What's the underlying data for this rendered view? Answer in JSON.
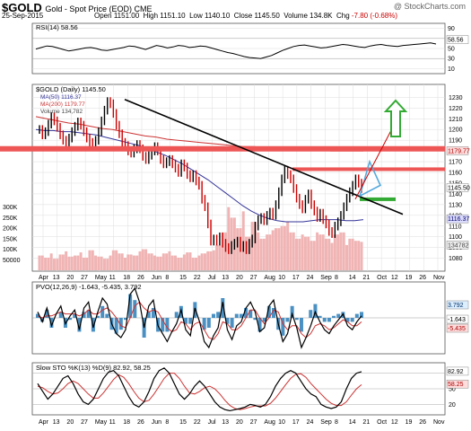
{
  "header": {
    "symbol": "$GOLD",
    "subtitle": "Gold - Spot Price (EOD) CME",
    "watermark": "@ StockCharts.com",
    "date": "25-Sep-2015",
    "open_label": "Open",
    "open": "1151.00",
    "high_label": "High",
    "high": "1151.10",
    "low_label": "Low",
    "low": "1140.10",
    "close_label": "Close",
    "close": "1145.50",
    "volume_label": "Volume",
    "volume": "134.8K",
    "chg_label": "Chg",
    "chg": "-7.80 (-0.68%)"
  },
  "colors": {
    "price_up": "#000000",
    "price_down": "#cc0000",
    "ma50": "#333399",
    "ma200": "#cc3333",
    "volume": "#f0b4b4",
    "hline": "#ee5555",
    "arrow_up": "#33aa33",
    "arrow_tri": "#55aadd",
    "panel_bg": "#ffffff",
    "grid": "#dddddd"
  },
  "chart_data": [
    {
      "type": "line",
      "panel": "rsi",
      "title": "RSI(14) 58.56",
      "ylim": [
        0,
        100
      ],
      "ticks": [
        "90",
        "70",
        "50",
        "30",
        "10"
      ],
      "last_label": "58.56",
      "series": [
        {
          "values": [
            49,
            52,
            55,
            54,
            51,
            48,
            45,
            47,
            49,
            51,
            52,
            50,
            47,
            46,
            48,
            50,
            52,
            55,
            54,
            51,
            48,
            52,
            56,
            54,
            51,
            53,
            56,
            55,
            52,
            53,
            55,
            54,
            51,
            48,
            45,
            42,
            40,
            37,
            34,
            32,
            31,
            30,
            33,
            36,
            41,
            46,
            50,
            54,
            56,
            57,
            55,
            53,
            51,
            52,
            54,
            56,
            58,
            57,
            55,
            53,
            52,
            55,
            57,
            58,
            56,
            55,
            54,
            56,
            57,
            58,
            59,
            60,
            61,
            59
          ]
        }
      ]
    },
    {
      "type": "line",
      "panel": "price",
      "title": "$GOLD (Daily) 1145.50",
      "ylim": [
        1068,
        1242
      ],
      "yticks": [
        "1230",
        "1220",
        "1210",
        "1200",
        "1190",
        "1180",
        "1170",
        "1160",
        "1150",
        "1140",
        "1130",
        "1120",
        "1110",
        "1100",
        "1090",
        "1080"
      ],
      "xlabels": [
        "Apr",
        "13",
        "20",
        "27",
        "May",
        "11",
        "18",
        "26",
        "Jun",
        "8",
        "15",
        "22",
        "Jul",
        "13",
        "20",
        "27",
        "Aug",
        "10",
        "17",
        "24",
        "Sep",
        "8",
        "14",
        "21",
        "Oct",
        "12",
        "19",
        "26",
        "Nov"
      ],
      "volume_ticks": [
        "300K",
        "250K",
        "200K",
        "150K",
        "100K",
        "50000"
      ],
      "legend": [
        "MA(50) 1116.37",
        "MA(200) 1179.77",
        "Volume 134,782"
      ],
      "value_labels": [
        "1179.77",
        "1145.50",
        "1116.37",
        "134782"
      ],
      "series": [
        {
          "name": "$GOLD",
          "values": [
            1200,
            1195,
            1198,
            1205,
            1212,
            1208,
            1202,
            1195,
            1190,
            1188,
            1192,
            1198,
            1203,
            1207,
            1204,
            1198,
            1192,
            1188,
            1185,
            1190,
            1198,
            1208,
            1218,
            1226,
            1224,
            1215,
            1204,
            1196,
            1188,
            1185,
            1180,
            1178,
            1182,
            1186,
            1182,
            1175,
            1172,
            1176,
            1180,
            1184,
            1180,
            1172,
            1168,
            1170,
            1172,
            1168,
            1164,
            1160,
            1168,
            1165,
            1158,
            1155,
            1158,
            1152,
            1148,
            1135,
            1128,
            1112,
            1096,
            1098,
            1096,
            1100,
            1094,
            1090,
            1088,
            1092,
            1094,
            1096,
            1090,
            1092,
            1088,
            1094,
            1098,
            1110,
            1116,
            1118,
            1115,
            1120,
            1123,
            1120,
            1130,
            1142,
            1154,
            1162,
            1158,
            1154,
            1145,
            1136,
            1130,
            1126,
            1135,
            1140,
            1130,
            1124,
            1118,
            1122,
            1116,
            1112,
            1105,
            1103,
            1110,
            1114,
            1120,
            1128,
            1136,
            1142,
            1148,
            1154,
            1150,
            1145
          ]
        },
        {
          "name": "MA(50)",
          "values": [
            1200,
            1199,
            1199,
            1198,
            1198,
            1197,
            1196,
            1195,
            1193,
            1191,
            1189,
            1187,
            1185,
            1182,
            1179,
            1176,
            1172,
            1168,
            1163,
            1158,
            1153,
            1147,
            1141,
            1135,
            1129,
            1124,
            1120,
            1117,
            1115,
            1114,
            1114,
            1114,
            1115,
            1116,
            1116,
            1116,
            1115,
            1115,
            1116
          ]
        },
        {
          "name": "MA(200)",
          "values": [
            1212,
            1210,
            1208,
            1206,
            1205,
            1203,
            1201,
            1200,
            1198,
            1196,
            1194,
            1193,
            1191,
            1190,
            1189,
            1188,
            1187,
            1186,
            1185,
            1184,
            1184,
            1183,
            1183,
            1182,
            1182,
            1181,
            1181,
            1180,
            1180,
            1180,
            1180
          ]
        },
        {
          "name": "Volume",
          "values": [
            70,
            60,
            80,
            55,
            75,
            90,
            65,
            70,
            85,
            60,
            95,
            70,
            65,
            55,
            70,
            95,
            80,
            60,
            75,
            70,
            90,
            100,
            80,
            70,
            65,
            80,
            90,
            70,
            60,
            75,
            85,
            60,
            70,
            80,
            90,
            95,
            120,
            180,
            300,
            250,
            200,
            280,
            160,
            230,
            180,
            150,
            170,
            190,
            200,
            210,
            230,
            180,
            150,
            170,
            160,
            140,
            180,
            170,
            150,
            130,
            170,
            180,
            120,
            150,
            140,
            135
          ]
        }
      ],
      "annotations": {
        "resistance_1": 1182,
        "resistance_2": 1163,
        "support_short": 1135,
        "trendline": [
          [
            1228,
            "May 18"
          ],
          [
            1121,
            "Oct 26"
          ]
        ]
      }
    },
    {
      "type": "bar",
      "panel": "pvo",
      "title": "PVO(12,26,9) -1.643, -5.435, 3.792",
      "last_labels": [
        "3.792",
        "-1.643",
        "-5.435"
      ],
      "series": [
        {
          "name": "PVO",
          "values": [
            3,
            -2,
            5,
            -4,
            2,
            6,
            -3,
            1,
            4,
            -6,
            5,
            8,
            -5,
            3,
            10,
            7,
            -3,
            -8,
            -10,
            -6,
            12,
            15,
            8,
            -5,
            6,
            9,
            -4,
            -8,
            -12,
            -7,
            -3,
            4,
            -6,
            -9,
            5,
            -2,
            -12,
            -15,
            -9,
            -5,
            8,
            -6,
            -11,
            -4,
            -2,
            5,
            8,
            3,
            -7,
            -5,
            6,
            9,
            -3,
            -12,
            -8,
            2,
            -5,
            -15,
            -10,
            -4,
            3,
            -2,
            -6,
            -8,
            -4,
            -1,
            2,
            -4,
            -6,
            -2,
            1
          ]
        },
        {
          "name": "Signal",
          "values": [
            1,
            0,
            1,
            1,
            2,
            3,
            2,
            2,
            2,
            1,
            2,
            4,
            2,
            2,
            4,
            5,
            3,
            0,
            -4,
            -5,
            0,
            6,
            8,
            5,
            3,
            4,
            3,
            -1,
            -5,
            -7,
            -6,
            -2,
            -3,
            -6,
            -3,
            -2,
            -6,
            -10,
            -11,
            -8,
            -2,
            -3,
            -6,
            -6,
            -4,
            0,
            4,
            4,
            0,
            -3,
            0,
            4,
            3,
            -3,
            -6,
            -4,
            -4,
            -8,
            -10,
            -8,
            -4,
            -3,
            -4,
            -6,
            -5,
            -3,
            -1,
            -2,
            -4,
            -4,
            -2
          ]
        },
        {
          "name": "Histogram",
          "values": [
            2,
            -2,
            4,
            -5,
            0,
            3,
            -5,
            -1,
            2,
            -7,
            3,
            4,
            -7,
            1,
            6,
            2,
            -6,
            -8,
            -6,
            -1,
            12,
            9,
            0,
            -10,
            3,
            5,
            -7,
            -7,
            -7,
            0,
            3,
            6,
            -3,
            -3,
            8,
            0,
            -6,
            -5,
            2,
            3,
            10,
            -3,
            -5,
            2,
            2,
            5,
            4,
            -1,
            -7,
            -2,
            6,
            5,
            -6,
            -9,
            -2,
            6,
            -1,
            -7,
            0,
            4,
            7,
            1,
            -2,
            -2,
            1,
            2,
            3,
            -2,
            -2,
            2,
            3
          ]
        }
      ]
    },
    {
      "type": "line",
      "panel": "sto",
      "title": "Slow STO %K(13) %D(9) 82.92, 58.25",
      "ylim": [
        0,
        100
      ],
      "ticks": [
        "80",
        "50",
        "20"
      ],
      "last_labels": [
        "82.92",
        "58.25"
      ],
      "xlabels": [
        "Apr",
        "13",
        "20",
        "27",
        "May",
        "11",
        "18",
        "26",
        "Jun",
        "8",
        "15",
        "22",
        "Jul",
        "13",
        "20",
        "27",
        "Aug",
        "10",
        "17",
        "24",
        "Sep",
        "8",
        "14",
        "21",
        "Oct",
        "12",
        "19",
        "26",
        "Nov"
      ],
      "series": [
        {
          "name": "%K",
          "values": [
            60,
            45,
            30,
            40,
            55,
            70,
            75,
            60,
            40,
            25,
            20,
            30,
            50,
            70,
            82,
            85,
            75,
            55,
            35,
            20,
            15,
            25,
            45,
            70,
            85,
            90,
            80,
            60,
            40,
            30,
            40,
            55,
            65,
            55,
            40,
            25,
            15,
            10,
            8,
            10,
            12,
            15,
            20,
            18,
            15,
            20,
            35,
            55,
            70,
            80,
            85,
            80,
            65,
            50,
            40,
            35,
            20,
            15,
            12,
            15,
            25,
            50,
            70,
            80,
            83
          ]
        },
        {
          "name": "%D",
          "values": [
            55,
            52,
            45,
            40,
            42,
            50,
            60,
            65,
            60,
            50,
            40,
            32,
            32,
            42,
            55,
            68,
            77,
            72,
            60,
            45,
            32,
            25,
            28,
            40,
            55,
            70,
            80,
            80,
            70,
            55,
            42,
            40,
            45,
            52,
            55,
            50,
            40,
            28,
            18,
            12,
            10,
            12,
            15,
            17,
            17,
            17,
            22,
            32,
            45,
            58,
            70,
            78,
            79,
            72,
            60,
            50,
            40,
            30,
            22,
            18,
            18,
            25,
            38,
            50,
            58
          ]
        }
      ]
    }
  ]
}
